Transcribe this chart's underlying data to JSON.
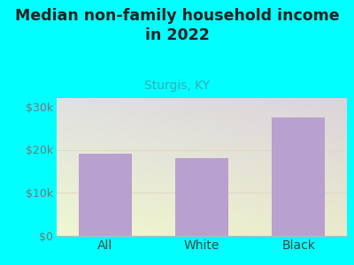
{
  "title": "Median non-family household income\nin 2022",
  "subtitle": "Sturgis, KY",
  "categories": [
    "All",
    "White",
    "Black"
  ],
  "values": [
    19000,
    18000,
    27500
  ],
  "bar_color": "#b8a0d0",
  "title_fontsize": 12.5,
  "subtitle_fontsize": 10,
  "subtitle_color": "#3aacb8",
  "title_color": "#222222",
  "background_color": "#00ffff",
  "ylim": [
    0,
    32000
  ],
  "yticks": [
    0,
    10000,
    20000,
    30000
  ],
  "ytick_labels": [
    "$0",
    "$10k",
    "$20k",
    "$30k"
  ],
  "tick_color": "#777777",
  "xlabel_color": "#444444",
  "grid_color": "#e0d8c0",
  "bottom_spine_color": "#bbbbbb"
}
